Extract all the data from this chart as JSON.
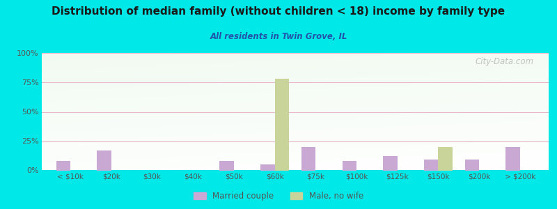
{
  "title": "Distribution of median family (without children < 18) income by family type",
  "subtitle": "All residents in Twin Grove, IL",
  "categories": [
    "< $10k",
    "$20k",
    "$30k",
    "$40k",
    "$50k",
    "$60k",
    "$75k",
    "$100k",
    "$125k",
    "$150k",
    "$200k",
    "> $200k"
  ],
  "married_couple": [
    8,
    17,
    0,
    0,
    8,
    5,
    20,
    8,
    12,
    9,
    9,
    20
  ],
  "male_no_wife": [
    0,
    0,
    0,
    0,
    0,
    78,
    0,
    0,
    0,
    20,
    0,
    0
  ],
  "married_color": "#c9a8d4",
  "male_color": "#c8d49a",
  "bg_color": "#00e8e8",
  "title_color": "#1a1a1a",
  "subtitle_color": "#2255aa",
  "grid_color": "#e8b8cc",
  "tick_color": "#555555",
  "ylim": [
    0,
    100
  ],
  "yticks": [
    0,
    25,
    50,
    75,
    100
  ],
  "ytick_labels": [
    "0%",
    "25%",
    "50%",
    "75%",
    "100%"
  ],
  "bar_width": 0.35,
  "legend_married": "Married couple",
  "legend_male": "Male, no wife",
  "watermark": "City-Data.com"
}
